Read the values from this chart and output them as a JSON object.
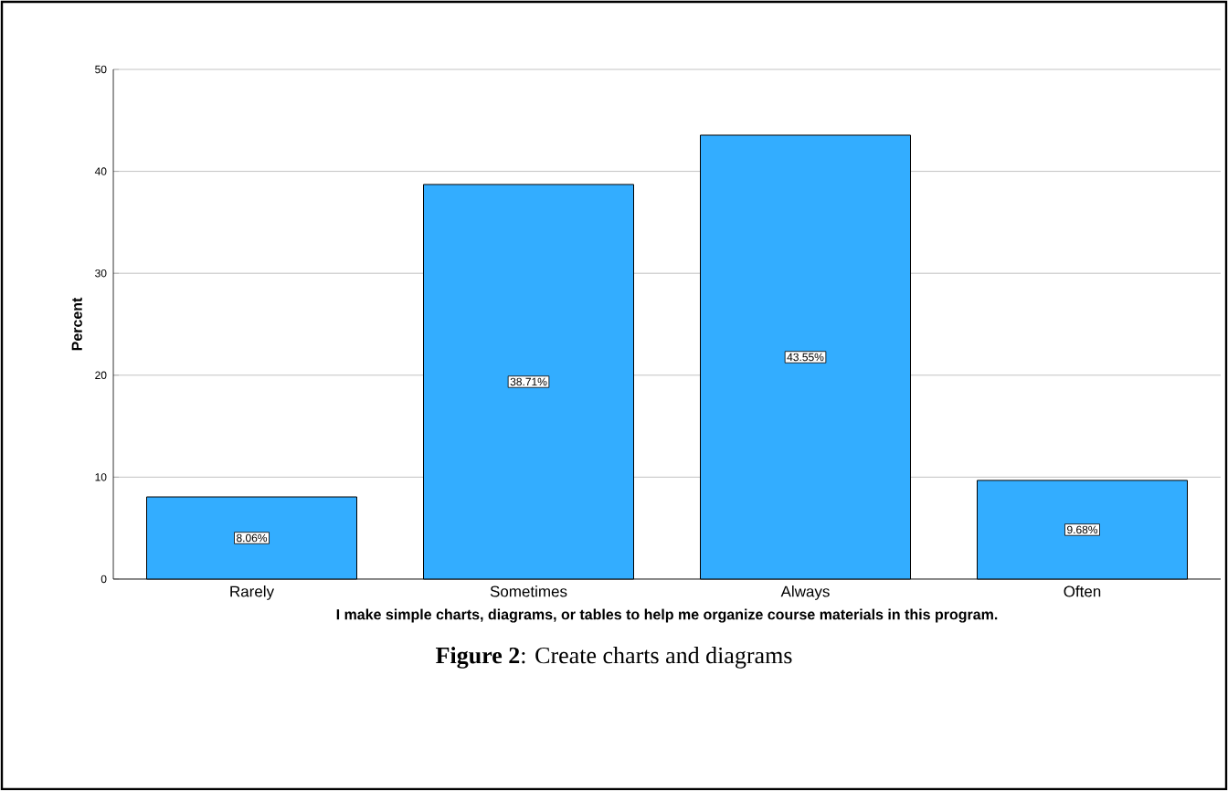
{
  "chart_data": {
    "type": "bar",
    "xlabel": "I make simple charts, diagrams, or tables to help me organize course materials in this program.",
    "ylabel": "Percent",
    "categories": [
      "Rarely",
      "Sometimes",
      "Always",
      "Often"
    ],
    "values": [
      8.06,
      38.71,
      43.55,
      9.68
    ],
    "value_labels": [
      "8.06%",
      "38.71%",
      "43.55%",
      "9.68%"
    ],
    "color": "#33adff",
    "ylim": [
      0,
      50
    ],
    "yticks": [
      0,
      10,
      20,
      30,
      40,
      50
    ],
    "grid": "y",
    "annotations": [
      "**Figure 2**: Create charts and diagrams"
    ]
  }
}
